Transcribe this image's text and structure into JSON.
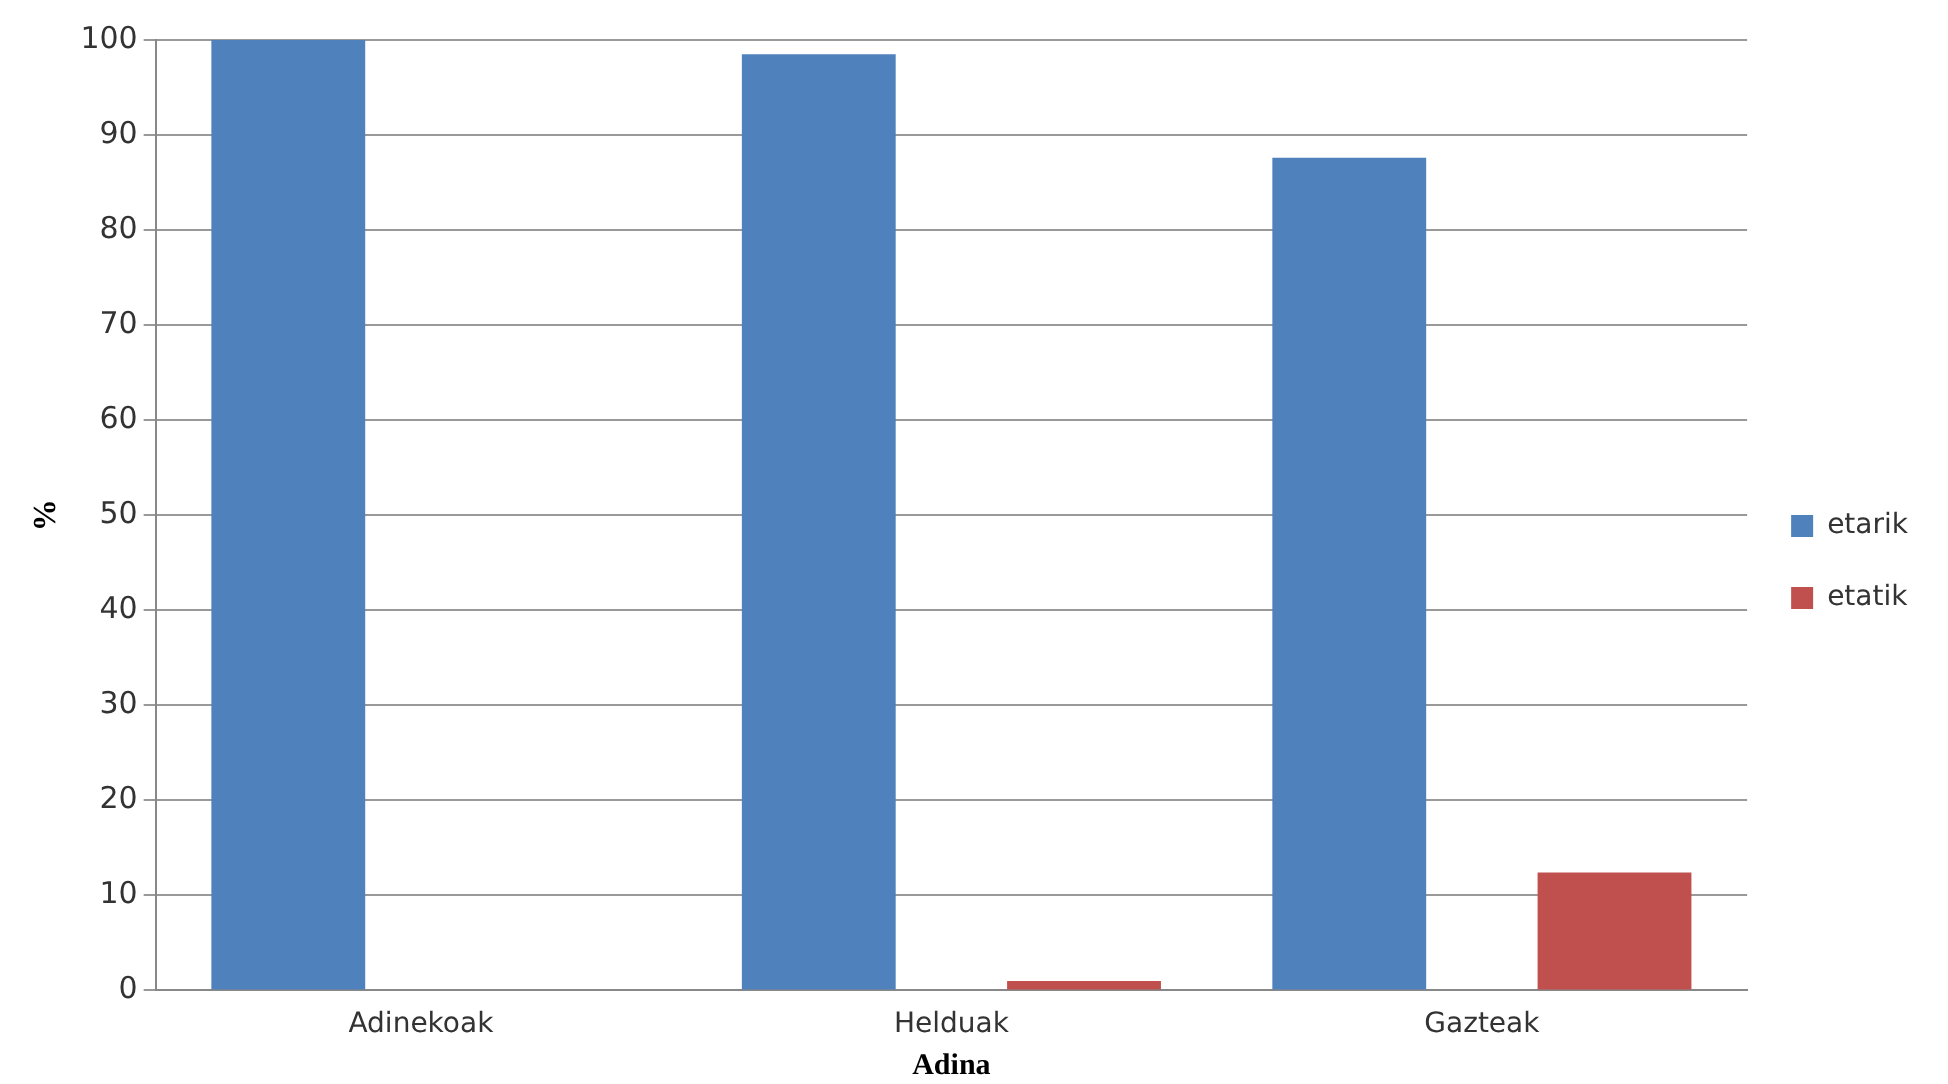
{
  "chart_data": {
    "type": "bar",
    "xlabel": "Adina",
    "ylabel": "%",
    "categories": [
      "Adinekoak",
      "Helduak",
      "Gazteak"
    ],
    "series": [
      {
        "name": "etarik",
        "color": "#4f81bd",
        "values": [
          100,
          98.5,
          87.6
        ]
      },
      {
        "name": "etatik",
        "color": "#c0504d",
        "values": [
          0,
          1,
          12.4
        ]
      }
    ],
    "ylim": [
      0,
      100
    ],
    "yticks": [
      0,
      10,
      20,
      30,
      40,
      50,
      60,
      70,
      80,
      90,
      100
    ],
    "grid": "y",
    "legend": "right"
  }
}
